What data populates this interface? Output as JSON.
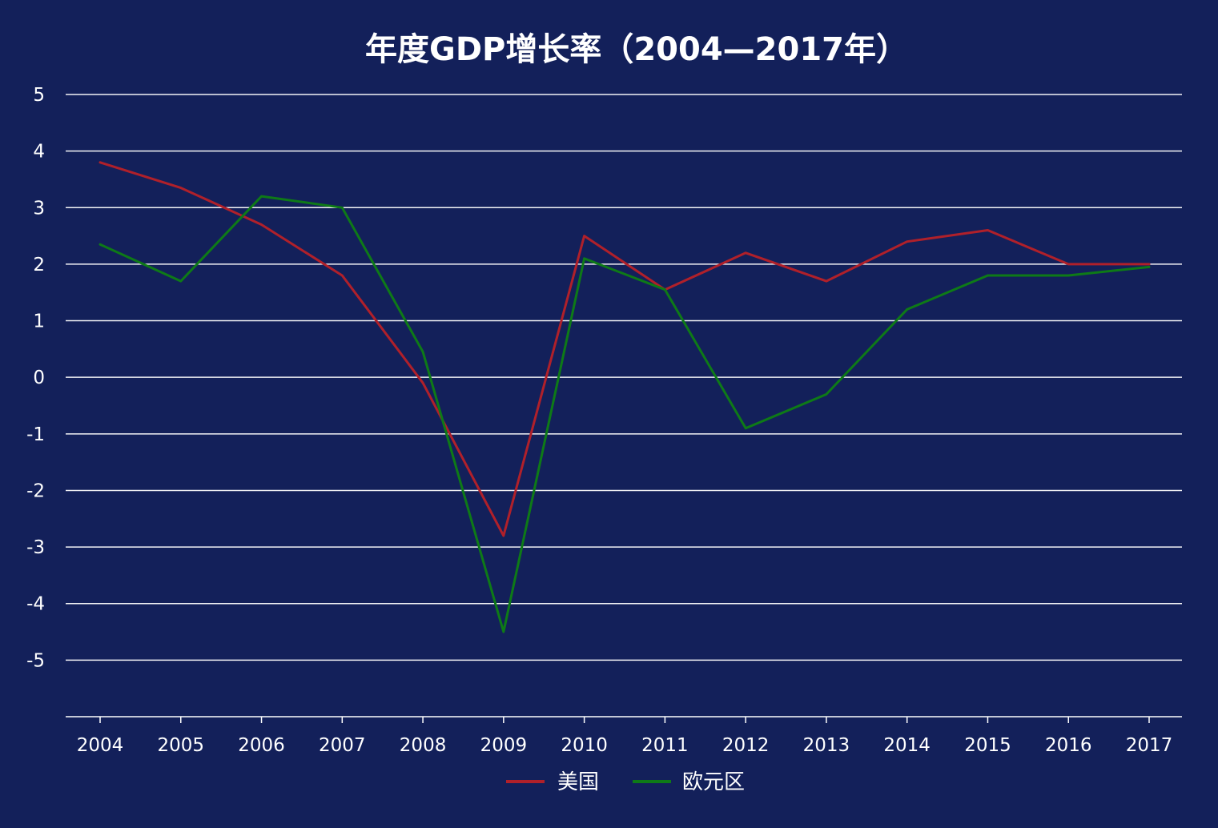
{
  "chart_data": {
    "type": "line",
    "title": "年度GDP增长率（2004—2017年）",
    "x": [
      "2004",
      "2005",
      "2006",
      "2007",
      "2008",
      "2009",
      "2010",
      "2011",
      "2012",
      "2013",
      "2014",
      "2015",
      "2016",
      "2017"
    ],
    "ylim": [
      -6,
      5
    ],
    "yticks": [
      "5",
      "4",
      "3",
      "2",
      "1",
      "0",
      "-1",
      "-2",
      "-3",
      "-4",
      "-5"
    ],
    "ytick_values": [
      5,
      4,
      3,
      2,
      1,
      0,
      -1,
      -2,
      -3,
      -4,
      -5
    ],
    "grid": true,
    "legend_position": "bottom",
    "series": [
      {
        "name": "美国",
        "color": "#b0202a",
        "values": [
          3.8,
          3.35,
          2.7,
          1.8,
          -0.1,
          -2.8,
          2.5,
          1.55,
          2.2,
          1.7,
          2.4,
          2.6,
          2.0,
          2.0
        ]
      },
      {
        "name": "欧元区",
        "color": "#0e7a17",
        "values": [
          2.35,
          1.7,
          3.2,
          3.0,
          0.45,
          -4.5,
          2.1,
          1.55,
          -0.9,
          -0.3,
          1.2,
          1.8,
          1.8,
          1.95
        ]
      }
    ]
  }
}
